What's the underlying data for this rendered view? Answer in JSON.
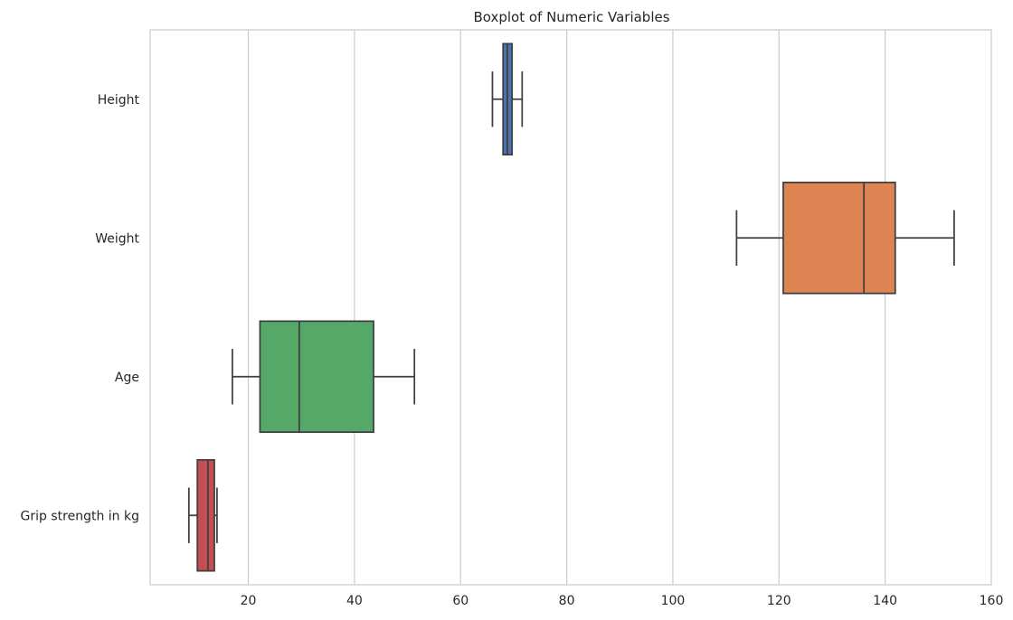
{
  "chart_data": {
    "type": "boxplot",
    "orientation": "horizontal",
    "title": "Boxplot of Numeric Variables",
    "xlabel": "",
    "ylabel": "",
    "xlim": [
      1.5,
      160
    ],
    "xticks": [
      20,
      40,
      60,
      80,
      100,
      120,
      140,
      160
    ],
    "grid": "x",
    "categories": [
      "Height",
      "Weight",
      "Age",
      "Grip strength in kg"
    ],
    "boxes": [
      {
        "label": "Height",
        "whisker_low": 66,
        "q1": 68,
        "median": 68.8,
        "q3": 69.7,
        "whisker_high": 71.6,
        "color": "#4c72b0"
      },
      {
        "label": "Weight",
        "whisker_low": 112,
        "q1": 120.8,
        "median": 136,
        "q3": 141.9,
        "whisker_high": 153,
        "color": "#dd8452"
      },
      {
        "label": "Age",
        "whisker_low": 17,
        "q1": 22.2,
        "median": 29.6,
        "q3": 43.6,
        "whisker_high": 51.3,
        "color": "#55a868"
      },
      {
        "label": "Grip strength in kg",
        "whisker_low": 8.8,
        "q1": 10.4,
        "median": 12.4,
        "q3": 13.6,
        "whisker_high": 14.1,
        "color": "#c44e52"
      }
    ]
  }
}
